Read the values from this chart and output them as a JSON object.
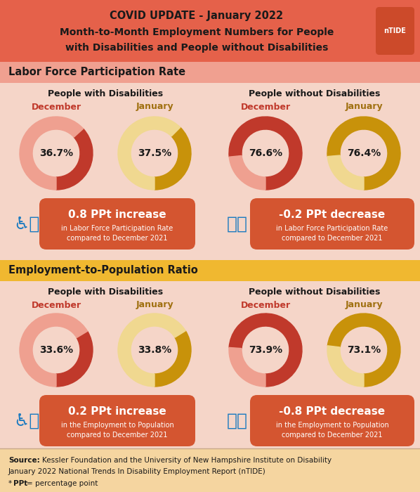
{
  "header_bg": "#E5614A",
  "header_title1": "COVID UPDATE - January 2022",
  "header_title2": "Month-to-Month Employment Numbers for People",
  "header_title3": "with Disabilities and People without Disabilities",
  "bg_color": "#F5D5C8",
  "section1_label": "Labor Force Participation Rate",
  "section1_bg": "#F0A090",
  "section2_label": "Employment-to-Population Ratio",
  "section2_bg": "#F0B830",
  "lfpr_pwd_dec": 36.7,
  "lfpr_pwd_jan": 37.5,
  "lfpr_pwod_dec": 76.6,
  "lfpr_pwod_jan": 76.4,
  "epr_pwd_dec": 33.6,
  "epr_pwd_jan": 33.8,
  "epr_pwod_dec": 73.9,
  "epr_pwod_jan": 73.1,
  "dec_color_dark": "#C0392B",
  "dec_color_light": "#EFA090",
  "jan_dark": "#C8920A",
  "jan_light": "#F0D890",
  "change_bg": "#D45530",
  "footer_bg": "#F5D5A0",
  "white": "#FFFFFF",
  "black": "#1A1A1A",
  "label_dec_color": "#C0392B",
  "label_jan_color": "#A07010"
}
